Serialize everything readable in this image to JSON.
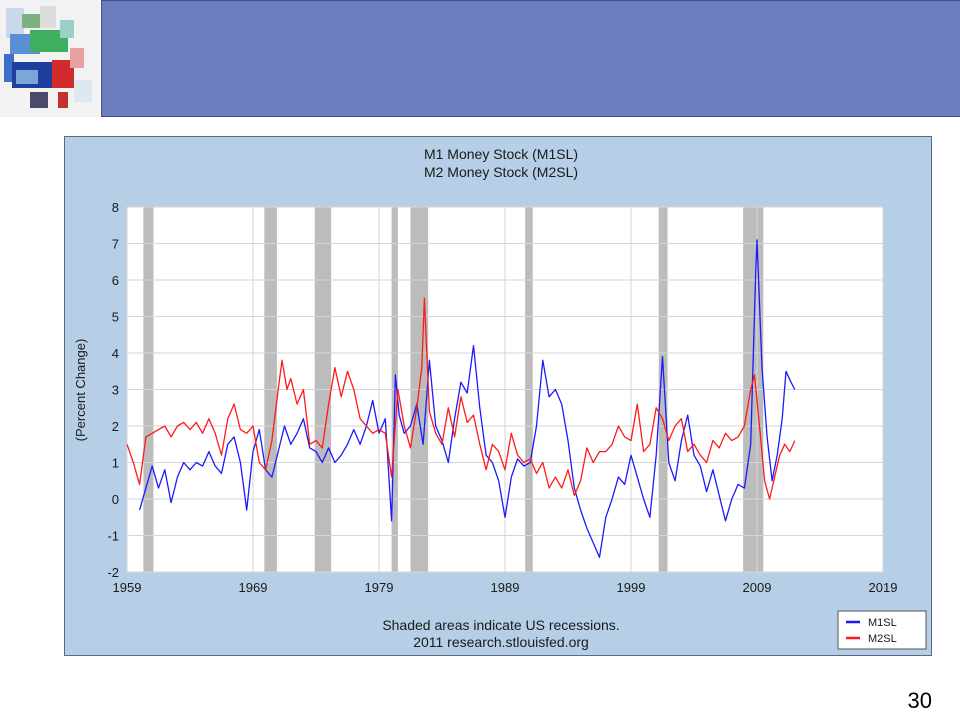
{
  "slide": {
    "page_number": "30"
  },
  "colors": {
    "header": "#6b7fbf",
    "chart_bg": "#b6cfe6",
    "m1": "#1a1aff",
    "m2": "#ff1a1a",
    "recession": "#bcbcbc"
  },
  "chart_data": {
    "type": "line",
    "title_lines": [
      "M1 Money Stock (M1SL)",
      "M2 Money Stock (M2SL)"
    ],
    "ylabel": "(Percent Change)",
    "xlabel": "",
    "xlim": [
      1959,
      2019
    ],
    "ylim": [
      -2,
      8
    ],
    "x_ticks": [
      1959,
      1969,
      1979,
      1989,
      1999,
      2009,
      2019
    ],
    "y_ticks": [
      -2,
      -1,
      0,
      1,
      2,
      3,
      4,
      5,
      6,
      7,
      8
    ],
    "grid": true,
    "legend_position": "bottom-right",
    "footnote_lines": [
      "Shaded areas indicate US recessions.",
      "2011 research.stlouisfed.org"
    ],
    "recessions": [
      [
        1960.3,
        1961.1
      ],
      [
        1969.9,
        1970.9
      ],
      [
        1973.9,
        1975.2
      ],
      [
        1980.0,
        1980.5
      ],
      [
        1981.5,
        1982.9
      ],
      [
        1990.6,
        1991.2
      ],
      [
        2001.2,
        2001.9
      ],
      [
        2007.9,
        2009.5
      ]
    ],
    "series": [
      {
        "name": "M1SL",
        "color": "#1a1aff",
        "points": [
          [
            1960.0,
            -0.3
          ],
          [
            1960.5,
            0.3
          ],
          [
            1961.0,
            0.9
          ],
          [
            1961.5,
            0.3
          ],
          [
            1962.0,
            0.8
          ],
          [
            1962.5,
            -0.1
          ],
          [
            1963.0,
            0.6
          ],
          [
            1963.5,
            1.0
          ],
          [
            1964.0,
            0.8
          ],
          [
            1964.5,
            1.0
          ],
          [
            1965.0,
            0.9
          ],
          [
            1965.5,
            1.3
          ],
          [
            1966.0,
            0.9
          ],
          [
            1966.5,
            0.7
          ],
          [
            1967.0,
            1.5
          ],
          [
            1967.5,
            1.7
          ],
          [
            1968.0,
            1.0
          ],
          [
            1968.5,
            -0.3
          ],
          [
            1969.0,
            1.3
          ],
          [
            1969.5,
            1.9
          ],
          [
            1970.0,
            0.8
          ],
          [
            1970.5,
            0.6
          ],
          [
            1971.0,
            1.3
          ],
          [
            1971.5,
            2.0
          ],
          [
            1972.0,
            1.5
          ],
          [
            1972.5,
            1.8
          ],
          [
            1973.0,
            2.2
          ],
          [
            1973.5,
            1.4
          ],
          [
            1974.0,
            1.3
          ],
          [
            1974.5,
            1.0
          ],
          [
            1975.0,
            1.4
          ],
          [
            1975.5,
            1.0
          ],
          [
            1976.0,
            1.2
          ],
          [
            1976.5,
            1.5
          ],
          [
            1977.0,
            1.9
          ],
          [
            1977.5,
            1.5
          ],
          [
            1978.0,
            2.0
          ],
          [
            1978.5,
            2.7
          ],
          [
            1979.0,
            1.8
          ],
          [
            1979.5,
            2.2
          ],
          [
            1980.0,
            -0.6
          ],
          [
            1980.3,
            3.4
          ],
          [
            1980.6,
            2.3
          ],
          [
            1981.0,
            1.8
          ],
          [
            1981.5,
            2.0
          ],
          [
            1982.0,
            2.6
          ],
          [
            1982.5,
            1.5
          ],
          [
            1983.0,
            3.8
          ],
          [
            1983.5,
            2.0
          ],
          [
            1984.0,
            1.6
          ],
          [
            1984.5,
            1.0
          ],
          [
            1985.0,
            2.2
          ],
          [
            1985.5,
            3.2
          ],
          [
            1986.0,
            2.9
          ],
          [
            1986.5,
            4.2
          ],
          [
            1987.0,
            2.5
          ],
          [
            1987.5,
            1.2
          ],
          [
            1988.0,
            1.0
          ],
          [
            1988.5,
            0.5
          ],
          [
            1989.0,
            -0.5
          ],
          [
            1989.5,
            0.6
          ],
          [
            1990.0,
            1.1
          ],
          [
            1990.5,
            0.9
          ],
          [
            1991.0,
            1.0
          ],
          [
            1991.5,
            2.0
          ],
          [
            1992.0,
            3.8
          ],
          [
            1992.5,
            2.8
          ],
          [
            1993.0,
            3.0
          ],
          [
            1993.5,
            2.6
          ],
          [
            1994.0,
            1.6
          ],
          [
            1994.5,
            0.3
          ],
          [
            1995.0,
            -0.3
          ],
          [
            1995.5,
            -0.8
          ],
          [
            1996.0,
            -1.2
          ],
          [
            1996.5,
            -1.6
          ],
          [
            1997.0,
            -0.5
          ],
          [
            1997.5,
            0.0
          ],
          [
            1998.0,
            0.6
          ],
          [
            1998.5,
            0.4
          ],
          [
            1999.0,
            1.2
          ],
          [
            1999.5,
            0.6
          ],
          [
            2000.0,
            0.0
          ],
          [
            2000.5,
            -0.5
          ],
          [
            2001.0,
            1.2
          ],
          [
            2001.5,
            3.9
          ],
          [
            2002.0,
            1.0
          ],
          [
            2002.5,
            0.5
          ],
          [
            2003.0,
            1.6
          ],
          [
            2003.5,
            2.3
          ],
          [
            2004.0,
            1.2
          ],
          [
            2004.5,
            0.9
          ],
          [
            2005.0,
            0.2
          ],
          [
            2005.5,
            0.8
          ],
          [
            2006.0,
            0.1
          ],
          [
            2006.5,
            -0.6
          ],
          [
            2007.0,
            0.0
          ],
          [
            2007.5,
            0.4
          ],
          [
            2008.0,
            0.3
          ],
          [
            2008.5,
            1.5
          ],
          [
            2008.9,
            6.2
          ],
          [
            2009.0,
            7.1
          ],
          [
            2009.4,
            3.6
          ],
          [
            2009.8,
            1.7
          ],
          [
            2010.2,
            0.5
          ],
          [
            2010.6,
            1.2
          ],
          [
            2011.0,
            2.2
          ],
          [
            2011.3,
            3.5
          ],
          [
            2011.7,
            3.2
          ],
          [
            2012.0,
            3.0
          ]
        ]
      },
      {
        "name": "M2SL",
        "color": "#ff1a1a",
        "points": [
          [
            1959.0,
            1.5
          ],
          [
            1959.5,
            1.0
          ],
          [
            1960.0,
            0.4
          ],
          [
            1960.5,
            1.7
          ],
          [
            1961.0,
            1.8
          ],
          [
            1961.5,
            1.9
          ],
          [
            1962.0,
            2.0
          ],
          [
            1962.5,
            1.7
          ],
          [
            1963.0,
            2.0
          ],
          [
            1963.5,
            2.1
          ],
          [
            1964.0,
            1.9
          ],
          [
            1964.5,
            2.1
          ],
          [
            1965.0,
            1.8
          ],
          [
            1965.5,
            2.2
          ],
          [
            1966.0,
            1.8
          ],
          [
            1966.5,
            1.2
          ],
          [
            1967.0,
            2.2
          ],
          [
            1967.5,
            2.6
          ],
          [
            1968.0,
            1.9
          ],
          [
            1968.5,
            1.8
          ],
          [
            1969.0,
            2.0
          ],
          [
            1969.5,
            1.0
          ],
          [
            1970.0,
            0.8
          ],
          [
            1970.5,
            1.6
          ],
          [
            1971.0,
            3.0
          ],
          [
            1971.3,
            3.8
          ],
          [
            1971.7,
            3.0
          ],
          [
            1972.0,
            3.3
          ],
          [
            1972.5,
            2.6
          ],
          [
            1973.0,
            3.0
          ],
          [
            1973.5,
            1.5
          ],
          [
            1974.0,
            1.6
          ],
          [
            1974.5,
            1.4
          ],
          [
            1975.0,
            2.6
          ],
          [
            1975.5,
            3.6
          ],
          [
            1976.0,
            2.8
          ],
          [
            1976.5,
            3.5
          ],
          [
            1977.0,
            3.0
          ],
          [
            1977.5,
            2.2
          ],
          [
            1978.0,
            2.0
          ],
          [
            1978.5,
            1.8
          ],
          [
            1979.0,
            1.9
          ],
          [
            1979.5,
            1.8
          ],
          [
            1980.0,
            0.6
          ],
          [
            1980.5,
            3.0
          ],
          [
            1981.0,
            2.0
          ],
          [
            1981.5,
            1.4
          ],
          [
            1982.0,
            2.5
          ],
          [
            1982.4,
            3.6
          ],
          [
            1982.6,
            5.5
          ],
          [
            1983.0,
            2.4
          ],
          [
            1983.5,
            1.8
          ],
          [
            1984.0,
            1.5
          ],
          [
            1984.5,
            2.5
          ],
          [
            1985.0,
            1.7
          ],
          [
            1985.5,
            2.8
          ],
          [
            1986.0,
            2.1
          ],
          [
            1986.5,
            2.3
          ],
          [
            1987.0,
            1.5
          ],
          [
            1987.5,
            0.8
          ],
          [
            1988.0,
            1.5
          ],
          [
            1988.5,
            1.3
          ],
          [
            1989.0,
            0.8
          ],
          [
            1989.5,
            1.8
          ],
          [
            1990.0,
            1.2
          ],
          [
            1990.5,
            1.0
          ],
          [
            1991.0,
            1.1
          ],
          [
            1991.5,
            0.7
          ],
          [
            1992.0,
            1.0
          ],
          [
            1992.5,
            0.3
          ],
          [
            1993.0,
            0.6
          ],
          [
            1993.5,
            0.3
          ],
          [
            1994.0,
            0.8
          ],
          [
            1994.5,
            0.1
          ],
          [
            1995.0,
            0.5
          ],
          [
            1995.5,
            1.4
          ],
          [
            1996.0,
            1.0
          ],
          [
            1996.5,
            1.3
          ],
          [
            1997.0,
            1.3
          ],
          [
            1997.5,
            1.5
          ],
          [
            1998.0,
            2.0
          ],
          [
            1998.5,
            1.7
          ],
          [
            1999.0,
            1.6
          ],
          [
            1999.5,
            2.6
          ],
          [
            2000.0,
            1.3
          ],
          [
            2000.5,
            1.5
          ],
          [
            2001.0,
            2.5
          ],
          [
            2001.5,
            2.2
          ],
          [
            2002.0,
            1.6
          ],
          [
            2002.5,
            2.0
          ],
          [
            2003.0,
            2.2
          ],
          [
            2003.5,
            1.3
          ],
          [
            2004.0,
            1.5
          ],
          [
            2004.5,
            1.2
          ],
          [
            2005.0,
            1.0
          ],
          [
            2005.5,
            1.6
          ],
          [
            2006.0,
            1.4
          ],
          [
            2006.5,
            1.8
          ],
          [
            2007.0,
            1.6
          ],
          [
            2007.5,
            1.7
          ],
          [
            2008.0,
            2.0
          ],
          [
            2008.5,
            3.0
          ],
          [
            2008.8,
            3.4
          ],
          [
            2009.2,
            2.0
          ],
          [
            2009.6,
            0.5
          ],
          [
            2010.0,
            0.0
          ],
          [
            2010.4,
            0.6
          ],
          [
            2010.8,
            1.2
          ],
          [
            2011.2,
            1.5
          ],
          [
            2011.6,
            1.3
          ],
          [
            2012.0,
            1.6
          ]
        ]
      }
    ]
  }
}
